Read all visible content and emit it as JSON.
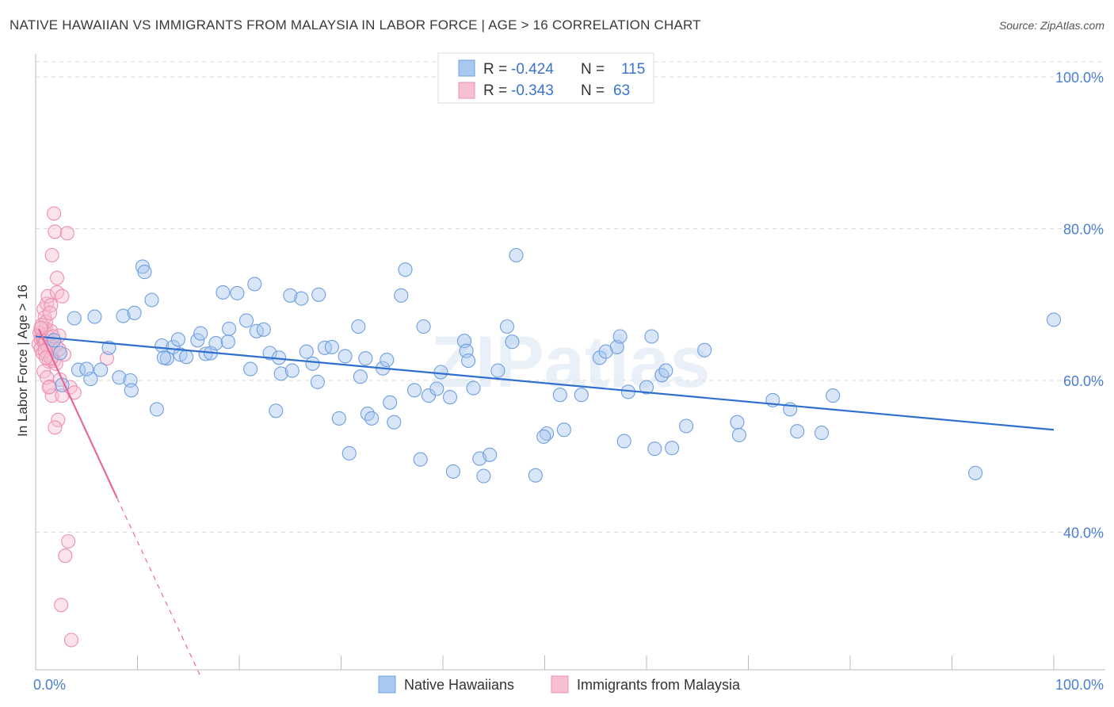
{
  "title": "NATIVE HAWAIIAN VS IMMIGRANTS FROM MALAYSIA IN LABOR FORCE | AGE > 16 CORRELATION CHART",
  "source": "Source: ZipAtlas.com",
  "watermark": "ZIPatlas",
  "colors": {
    "blue": "#6f9fe0",
    "blue_fill": "#a9c8f0",
    "blue_line": "#2f6fcf",
    "pink": "#ec8fae",
    "pink_fill": "#f7c0d2",
    "pink_line": "#e8679a",
    "grid": "#d9d9d9",
    "axis_text": "#4a7fd0"
  },
  "legend_top": {
    "row1": {
      "r_label": "R =",
      "r_value": "-0.424",
      "n_label": "N =",
      "n_value": "115"
    },
    "row2": {
      "r_label": "R =",
      "r_value": "-0.343",
      "n_label": "N =",
      "n_value": "63"
    }
  },
  "legend_bottom": {
    "blue_label": "Native Hawaiians",
    "pink_label": "Immigrants from Malaysia"
  },
  "chart_data": {
    "type": "scatter",
    "xlabel": "",
    "ylabel": "In Labor Force | Age > 16",
    "xlim": [
      0,
      100
    ],
    "ylim": [
      20,
      103
    ],
    "x_tick_labels": [
      "0.0%",
      "100.0%"
    ],
    "y_ticks": [
      40,
      60,
      80,
      100
    ],
    "y_tick_labels": [
      "40.0%",
      "60.0%",
      "80.0%",
      "100.0%"
    ],
    "grid": "horizontal dashed",
    "series": [
      {
        "name": "Native Hawaiians",
        "color": "blue",
        "trend": {
          "x": [
            0,
            100
          ],
          "y": [
            65.8,
            53.5
          ]
        },
        "points": [
          [
            1.8,
            65.3
          ],
          [
            2.4,
            63.6
          ],
          [
            2.6,
            59.4
          ],
          [
            3.8,
            68.2
          ],
          [
            4.2,
            61.4
          ],
          [
            5.4,
            60.2
          ],
          [
            5.8,
            68.4
          ],
          [
            6.4,
            61.4
          ],
          [
            7.2,
            64.3
          ],
          [
            8.2,
            60.4
          ],
          [
            8.6,
            68.5
          ],
          [
            9.3,
            60.0
          ],
          [
            9.4,
            58.7
          ],
          [
            9.7,
            68.9
          ],
          [
            10.5,
            75.0
          ],
          [
            10.7,
            74.3
          ],
          [
            11.4,
            70.6
          ],
          [
            11.9,
            56.2
          ],
          [
            12.4,
            64.6
          ],
          [
            12.9,
            62.9
          ],
          [
            13.5,
            64.4
          ],
          [
            14.0,
            65.4
          ],
          [
            14.2,
            63.4
          ],
          [
            14.8,
            63.1
          ],
          [
            15.9,
            65.3
          ],
          [
            16.2,
            66.2
          ],
          [
            16.7,
            63.5
          ],
          [
            17.2,
            63.6
          ],
          [
            17.7,
            64.9
          ],
          [
            18.4,
            71.6
          ],
          [
            18.9,
            65.1
          ],
          [
            19.0,
            66.8
          ],
          [
            19.8,
            71.5
          ],
          [
            20.7,
            67.9
          ],
          [
            21.1,
            61.5
          ],
          [
            21.5,
            72.7
          ],
          [
            21.7,
            66.5
          ],
          [
            22.4,
            66.7
          ],
          [
            23.0,
            63.6
          ],
          [
            23.6,
            56.0
          ],
          [
            23.9,
            63.0
          ],
          [
            24.1,
            60.9
          ],
          [
            25.0,
            71.2
          ],
          [
            25.2,
            61.3
          ],
          [
            26.1,
            70.8
          ],
          [
            26.6,
            63.8
          ],
          [
            27.2,
            62.2
          ],
          [
            27.7,
            59.8
          ],
          [
            27.8,
            71.3
          ],
          [
            28.4,
            64.3
          ],
          [
            29.1,
            64.4
          ],
          [
            29.8,
            55.0
          ],
          [
            30.4,
            63.2
          ],
          [
            30.8,
            50.4
          ],
          [
            31.7,
            67.1
          ],
          [
            31.9,
            60.5
          ],
          [
            32.4,
            62.9
          ],
          [
            32.6,
            55.6
          ],
          [
            34.1,
            61.6
          ],
          [
            34.5,
            62.7
          ],
          [
            34.8,
            57.1
          ],
          [
            35.2,
            54.5
          ],
          [
            35.9,
            71.2
          ],
          [
            36.3,
            74.6
          ],
          [
            37.2,
            58.7
          ],
          [
            37.8,
            49.6
          ],
          [
            38.1,
            67.1
          ],
          [
            38.6,
            58.0
          ],
          [
            39.4,
            58.9
          ],
          [
            39.8,
            61.1
          ],
          [
            41.0,
            48.0
          ],
          [
            42.1,
            65.2
          ],
          [
            42.3,
            63.9
          ],
          [
            42.5,
            62.6
          ],
          [
            43.0,
            59.0
          ],
          [
            43.6,
            49.7
          ],
          [
            44.0,
            47.4
          ],
          [
            44.6,
            50.2
          ],
          [
            45.4,
            61.3
          ],
          [
            46.3,
            67.1
          ],
          [
            46.8,
            65.1
          ],
          [
            47.2,
            76.5
          ],
          [
            49.1,
            47.5
          ],
          [
            50.2,
            53.0
          ],
          [
            51.5,
            58.1
          ],
          [
            51.9,
            53.5
          ],
          [
            53.6,
            58.1
          ],
          [
            55.4,
            63.0
          ],
          [
            57.1,
            64.4
          ],
          [
            57.4,
            65.8
          ],
          [
            57.8,
            52.0
          ],
          [
            58.2,
            58.5
          ],
          [
            60.5,
            65.8
          ],
          [
            60.8,
            51.0
          ],
          [
            61.5,
            60.7
          ],
          [
            61.9,
            61.3
          ],
          [
            62.5,
            51.1
          ],
          [
            63.9,
            54.0
          ],
          [
            65.7,
            64.0
          ],
          [
            68.9,
            54.5
          ],
          [
            72.4,
            57.4
          ],
          [
            74.8,
            53.3
          ],
          [
            77.2,
            53.1
          ],
          [
            78.3,
            58.0
          ],
          [
            92.3,
            47.8
          ],
          [
            100.0,
            68.0
          ],
          [
            5.0,
            61.5
          ],
          [
            12.6,
            63.0
          ],
          [
            33.0,
            55.0
          ],
          [
            40.7,
            57.8
          ],
          [
            49.9,
            52.6
          ],
          [
            56.0,
            63.8
          ],
          [
            69.1,
            52.8
          ],
          [
            74.1,
            56.2
          ],
          [
            60.0,
            59.1
          ]
        ]
      },
      {
        "name": "Immigrants from Malaysia",
        "color": "pink",
        "trend": {
          "x": [
            0.3,
            8.0
          ],
          "y": [
            66.8,
            44.5
          ]
        },
        "trend_dashed": {
          "x": [
            8.0,
            16.3
          ],
          "y": [
            44.5,
            20.7
          ]
        },
        "points": [
          [
            0.3,
            64.8
          ],
          [
            0.4,
            66.3
          ],
          [
            0.5,
            65.5
          ],
          [
            0.5,
            64.2
          ],
          [
            0.6,
            67.0
          ],
          [
            0.6,
            66.2
          ],
          [
            0.7,
            65.6
          ],
          [
            0.7,
            63.6
          ],
          [
            0.8,
            65.0
          ],
          [
            0.8,
            69.4
          ],
          [
            0.9,
            68.3
          ],
          [
            0.9,
            64.9
          ],
          [
            1.0,
            66.8
          ],
          [
            1.0,
            65.2
          ],
          [
            1.1,
            70.1
          ],
          [
            1.1,
            66.0
          ],
          [
            1.2,
            71.1
          ],
          [
            1.2,
            63.2
          ],
          [
            1.3,
            65.7
          ],
          [
            1.3,
            62.5
          ],
          [
            1.4,
            64.6
          ],
          [
            1.4,
            59.2
          ],
          [
            1.5,
            69.9
          ],
          [
            1.5,
            66.5
          ],
          [
            1.6,
            63.0
          ],
          [
            1.6,
            58.0
          ],
          [
            1.7,
            64.4
          ],
          [
            1.8,
            82.0
          ],
          [
            1.8,
            62.6
          ],
          [
            1.9,
            79.6
          ],
          [
            2.0,
            64.6
          ],
          [
            2.1,
            73.5
          ],
          [
            2.1,
            71.6
          ],
          [
            2.2,
            54.8
          ],
          [
            2.3,
            65.9
          ],
          [
            2.4,
            60.1
          ],
          [
            2.6,
            71.1
          ],
          [
            2.6,
            58.0
          ],
          [
            2.8,
            63.4
          ],
          [
            3.1,
            79.4
          ],
          [
            3.2,
            38.8
          ],
          [
            3.4,
            59.1
          ],
          [
            2.9,
            36.9
          ],
          [
            2.5,
            30.4
          ],
          [
            3.5,
            25.8
          ],
          [
            1.6,
            76.5
          ],
          [
            1.9,
            53.8
          ],
          [
            0.8,
            61.2
          ],
          [
            1.0,
            67.7
          ],
          [
            1.2,
            64.3
          ],
          [
            1.4,
            68.9
          ],
          [
            7.0,
            62.9
          ],
          [
            3.8,
            58.4
          ],
          [
            1.1,
            60.4
          ],
          [
            0.9,
            63.9
          ],
          [
            1.3,
            59.1
          ],
          [
            0.6,
            67.3
          ],
          [
            2.0,
            62.2
          ],
          [
            1.7,
            65.8
          ],
          [
            1.5,
            62.9
          ],
          [
            0.5,
            66.9
          ],
          [
            2.3,
            64.1
          ],
          [
            1.0,
            63.0
          ]
        ]
      }
    ]
  }
}
